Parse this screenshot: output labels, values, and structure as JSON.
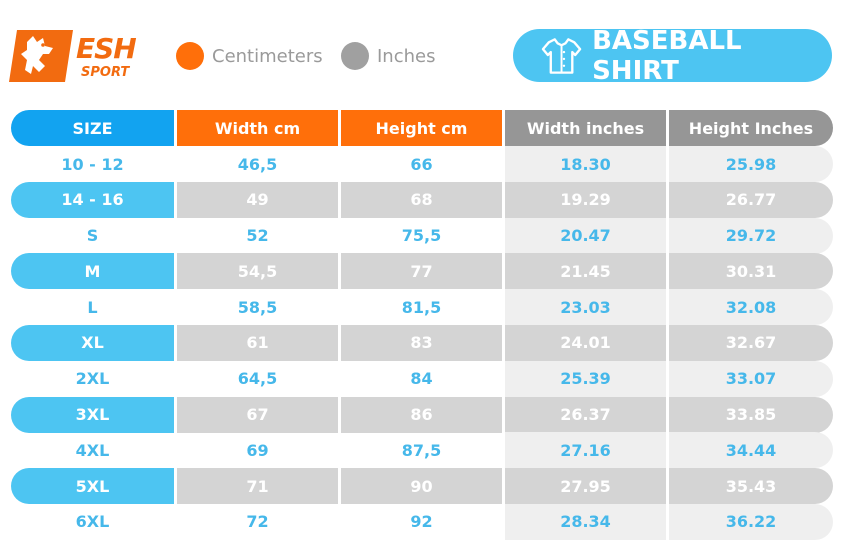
{
  "brand": {
    "name": "ESH",
    "sub": "SPORT"
  },
  "legend": {
    "cm_label": "Centimeters",
    "in_label": "Inches"
  },
  "title": "BASEBALL SHIRT",
  "colors": {
    "orange": "#ff6f0a",
    "blue": "#4dc5f2",
    "header_blue": "#12a3f0",
    "gray_header": "#969696",
    "gray_row": "#d4d4d4",
    "light_row": "#efefef",
    "text_blue": "#46b8ea"
  },
  "headers": [
    "SIZE",
    "Width cm",
    "Height cm",
    "Width inches",
    "Height Inches"
  ],
  "rows": [
    [
      "10 - 12",
      "46,5",
      "66",
      "18.30",
      "25.98"
    ],
    [
      "14 - 16",
      "49",
      "68",
      "19.29",
      "26.77"
    ],
    [
      "S",
      "52",
      "75,5",
      "20.47",
      "29.72"
    ],
    [
      "M",
      "54,5",
      "77",
      "21.45",
      "30.31"
    ],
    [
      "L",
      "58,5",
      "81,5",
      "23.03",
      "32.08"
    ],
    [
      "XL",
      "61",
      "83",
      "24.01",
      "32.67"
    ],
    [
      "2XL",
      "64,5",
      "84",
      "25.39",
      "33.07"
    ],
    [
      "3XL",
      "67",
      "86",
      "26.37",
      "33.85"
    ],
    [
      "4XL",
      "69",
      "87,5",
      "27.16",
      "34.44"
    ],
    [
      "5XL",
      "71",
      "90",
      "27.95",
      "35.43"
    ],
    [
      "6XL",
      "72",
      "92",
      "28.34",
      "36.22"
    ]
  ]
}
